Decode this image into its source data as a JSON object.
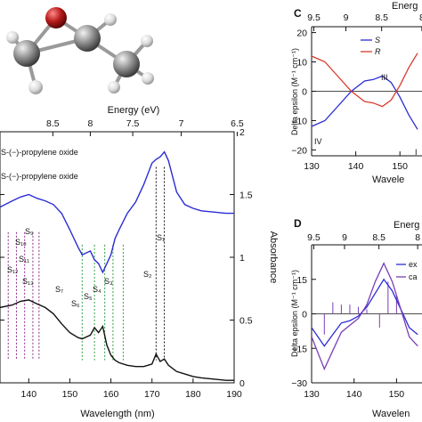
{
  "molecule": {
    "atoms": 8
  },
  "panel_b": {
    "top_axis_label": "Energy (eV)",
    "top_ticks": [
      "8.5",
      "8",
      "7.5",
      "7",
      "6.5"
    ],
    "bottom_axis_label": "Wavelength (nm)",
    "bottom_ticks": [
      "140",
      "150",
      "160",
      "170",
      "180",
      "190"
    ],
    "right_axis_label": "Absorbance",
    "right_ticks": [
      "0",
      "0.5",
      "1",
      "1.5",
      "2"
    ],
    "legend": [
      "S-(−)-propylene oxide",
      "S-(−)-propylene oxide"
    ],
    "state_labels_purple": [
      "S₉",
      "S₁₀",
      "S₁₁",
      "S₁₂",
      "S₁₃"
    ],
    "state_labels_green": [
      "S₇",
      "S₆",
      "S₅",
      "S₄",
      "S₃"
    ],
    "state_labels_black": [
      "S₂",
      "S₁"
    ]
  },
  "panel_c": {
    "panel_label": "C",
    "top_axis_label": "Energ",
    "top_ticks": [
      "9.5",
      "9",
      "8.5",
      "8"
    ],
    "bottom_axis_label": "Wavele",
    "bottom_ticks": [
      "130",
      "140",
      "150"
    ],
    "y_axis_label": "Delta epsilon (M⁻¹ cm⁻¹)",
    "y_ticks": [
      "20",
      "10",
      "0",
      "−10",
      "−20"
    ],
    "legend": [
      "S",
      "R"
    ],
    "roman_labels": [
      "III",
      "IV",
      "I"
    ]
  },
  "panel_d": {
    "panel_label": "D",
    "top_axis_label": "Energ",
    "top_ticks": [
      "9.5",
      "9",
      "8.5",
      "8"
    ],
    "bottom_axis_label": "Wavelen",
    "bottom_ticks": [
      "130",
      "140",
      "150"
    ],
    "y_axis_label": "Delta epsilon (M⁻¹ cm⁻¹)",
    "y_ticks": [
      "15",
      "0",
      "−15",
      "−30"
    ],
    "legend": [
      "ex",
      "ca"
    ]
  },
  "colors": {
    "blue": "#2b2bd6",
    "red": "#d93a2b",
    "purple": "#8b2a8b",
    "green": "#2ea043",
    "black": "#111111",
    "violet": "#7a3fb5"
  },
  "chart_data": [
    {
      "type": "line",
      "x": [
        133,
        136,
        138,
        140,
        142,
        144,
        146,
        148,
        150,
        152,
        153,
        155,
        156,
        157,
        158,
        159,
        160,
        161,
        162,
        164,
        166,
        168,
        170,
        171,
        172,
        173,
        174,
        176,
        178,
        180,
        182,
        185,
        188,
        190
      ],
      "series": [
        {
          "name": "S-(−)-propylene oxide",
          "values": [
            1.4,
            1.45,
            1.48,
            1.5,
            1.47,
            1.45,
            1.42,
            1.35,
            1.22,
            1.08,
            1.02,
            1.05,
            0.98,
            0.95,
            0.88,
            0.95,
            1.02,
            1.15,
            1.22,
            1.35,
            1.44,
            1.58,
            1.75,
            1.78,
            1.8,
            1.84,
            1.77,
            1.52,
            1.42,
            1.39,
            1.37,
            1.36,
            1.35,
            1.35
          ]
        },
        {
          "values": [
            0.6,
            0.62,
            0.65,
            0.66,
            0.63,
            0.6,
            0.55,
            0.47,
            0.4,
            0.36,
            0.35,
            0.38,
            0.44,
            0.4,
            0.45,
            0.3,
            0.22,
            0.18,
            0.16,
            0.14,
            0.13,
            0.13,
            0.15,
            0.23,
            0.17,
            0.19,
            0.14,
            0.09,
            0.07,
            0.05,
            0.04,
            0.03,
            0.02,
            0.02
          ]
        }
      ],
      "xlabel": "Wavelength (nm)",
      "ylabel": "Absorbance",
      "xlim": [
        133,
        190
      ],
      "ylim": [
        0,
        2
      ],
      "state_lines": {
        "purple": [
          135,
          137,
          139,
          141,
          142.5
        ],
        "green": [
          153,
          156,
          158.5,
          160.5,
          163
        ],
        "black": [
          171,
          173
        ]
      }
    },
    {
      "type": "line",
      "x": [
        130,
        133,
        136,
        139,
        142,
        144,
        146,
        148,
        150,
        152,
        154
      ],
      "series": [
        {
          "name": "S",
          "values": [
            -12,
            -10,
            -5,
            0,
            3.5,
            4,
            5.2,
            3,
            -2,
            -8,
            -13
          ]
        },
        {
          "name": "R",
          "values": [
            12,
            10,
            5,
            0,
            -3.5,
            -4,
            -5.2,
            -3,
            2,
            8,
            13
          ]
        }
      ],
      "xlabel": "Wavele",
      "ylabel": "Delta epsilon (M⁻¹ cm⁻¹)",
      "xlim": [
        130,
        155
      ],
      "ylim": [
        -22,
        22
      ]
    },
    {
      "type": "line",
      "x": [
        130,
        133,
        135,
        137,
        139,
        141,
        143,
        145,
        147,
        149,
        151,
        153,
        155
      ],
      "series": [
        {
          "name": "ex",
          "values": [
            -6,
            -14,
            -9,
            -4,
            -3,
            -1,
            3,
            9,
            15,
            10,
            2,
            -6,
            -9
          ]
        },
        {
          "name": "ca",
          "values": [
            -10,
            -24,
            -16,
            -8,
            -5,
            -2,
            4,
            14,
            22,
            14,
            2,
            -10,
            -14
          ]
        }
      ],
      "xlabel": "Wavelen",
      "ylabel": "Delta epsilon (M⁻¹ cm⁻¹)",
      "xlim": [
        130,
        156
      ],
      "ylim": [
        -30,
        30
      ],
      "sticks": [
        [
          133,
          -9
        ],
        [
          135,
          5
        ],
        [
          137,
          4
        ],
        [
          139,
          4
        ],
        [
          141,
          3
        ],
        [
          143,
          2
        ],
        [
          146,
          -6
        ],
        [
          148,
          14
        ],
        [
          150,
          8
        ]
      ]
    }
  ]
}
